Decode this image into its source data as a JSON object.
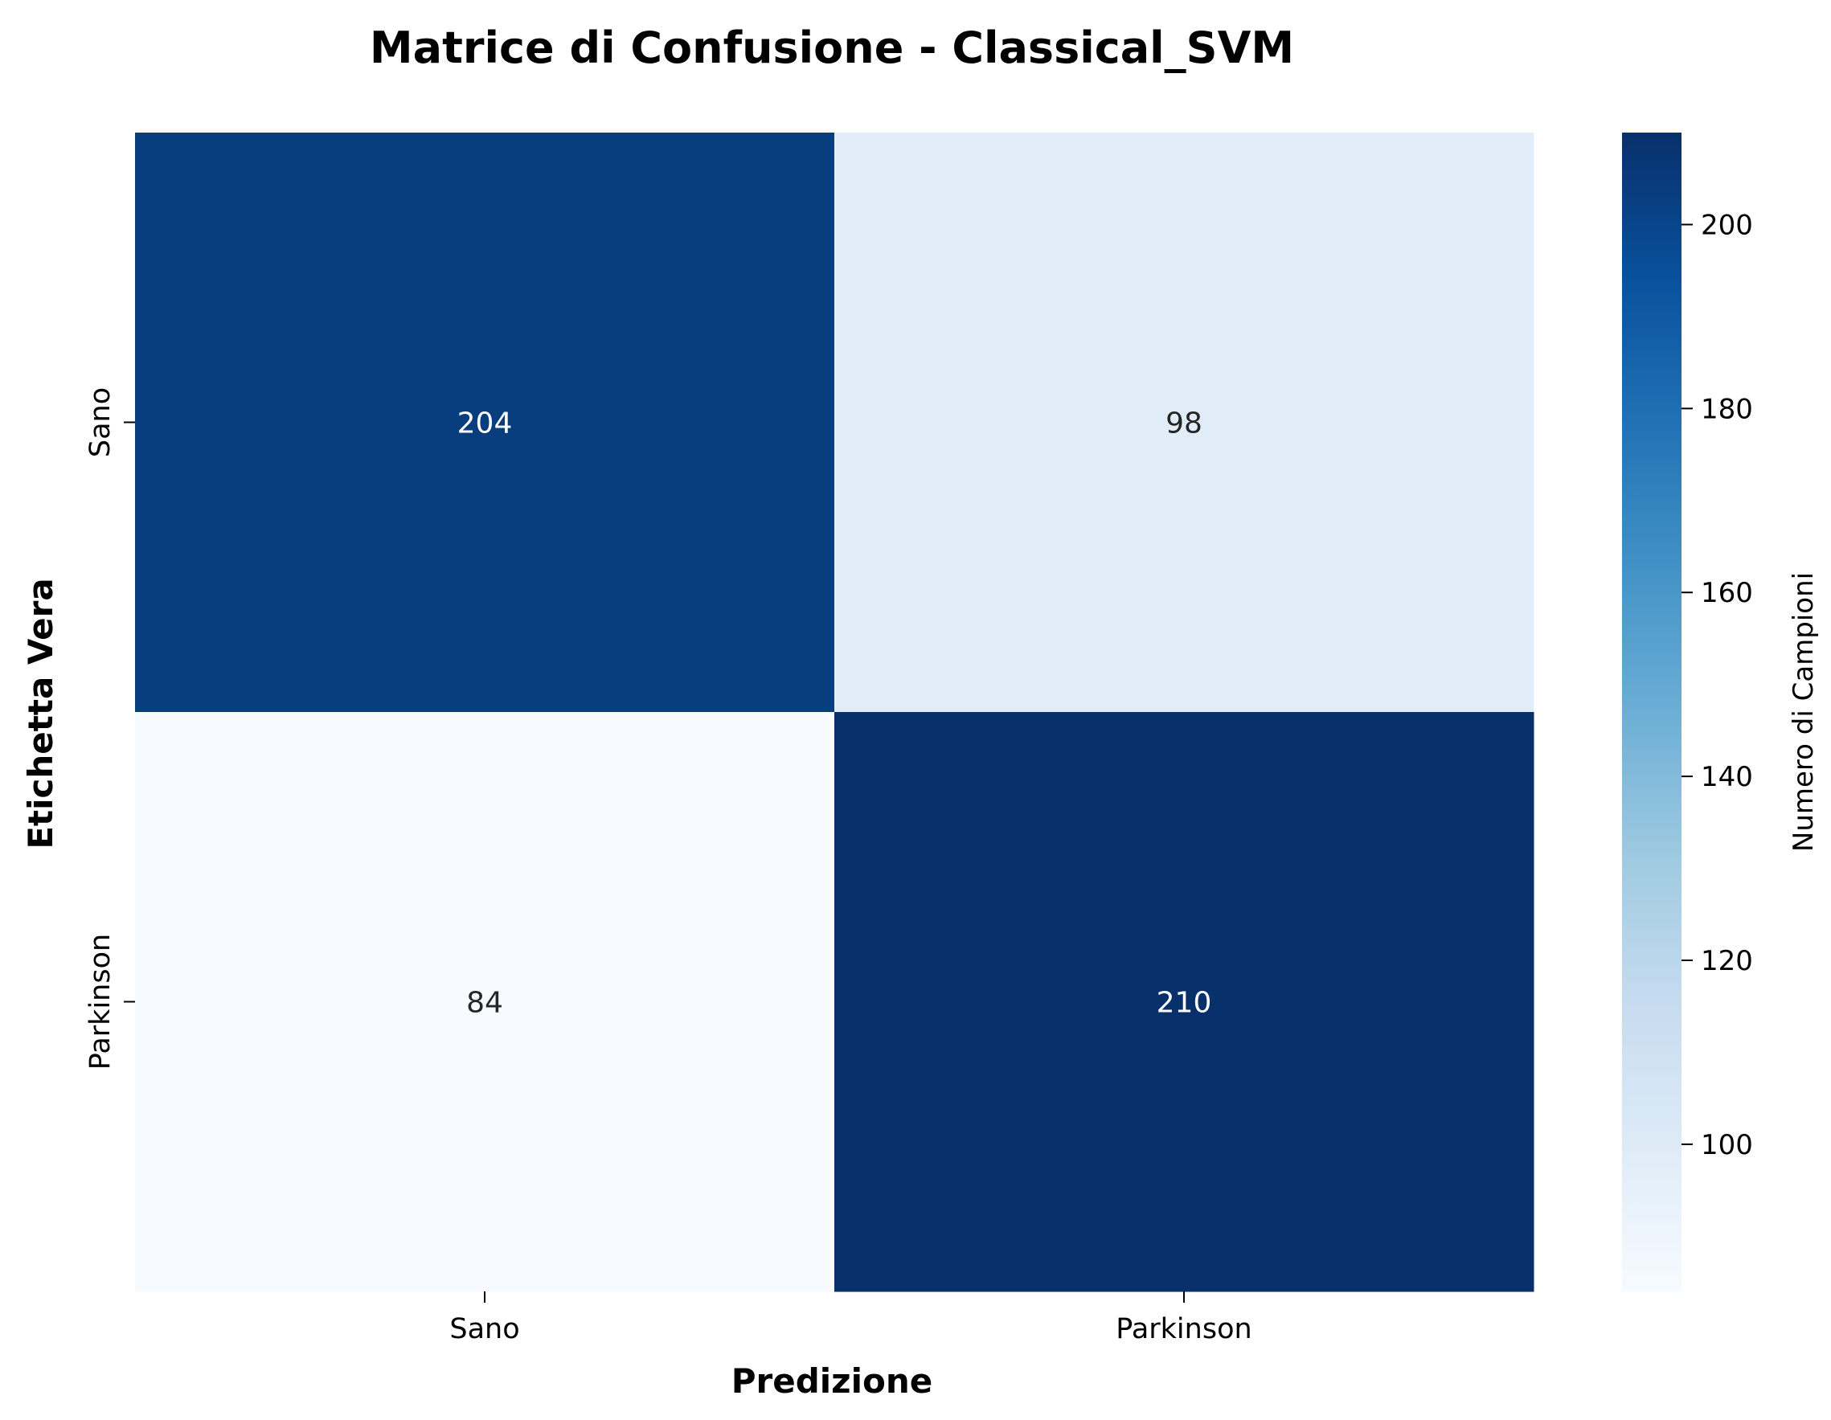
{
  "chart_data": {
    "type": "heatmap",
    "title": "Matrice di Confusione - Classical_SVM",
    "xlabel": "Predizione",
    "ylabel": "Etichetta Vera",
    "x_categories": [
      "Sano",
      "Parkinson"
    ],
    "y_categories": [
      "Sano",
      "Parkinson"
    ],
    "matrix": [
      [
        204,
        98
      ],
      [
        84,
        210
      ]
    ],
    "colorbar": {
      "label": "Numero di Campioni",
      "range": [
        84,
        210
      ],
      "ticks": [
        100,
        120,
        140,
        160,
        180,
        200
      ],
      "colormap": "Blues"
    },
    "grid": false
  }
}
